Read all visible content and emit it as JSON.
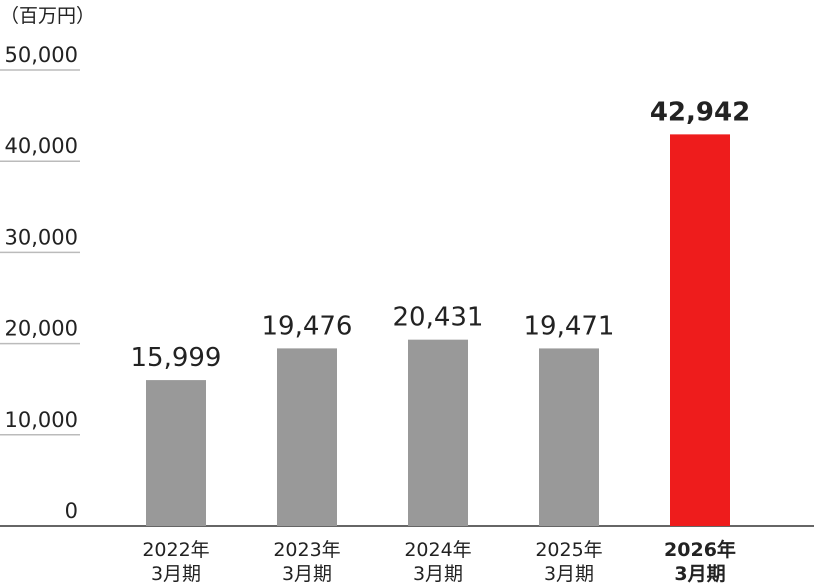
{
  "chart_data": {
    "type": "bar",
    "unit_label": "（百万円）",
    "categories": [
      "2022年\n3月期",
      "2023年\n3月期",
      "2024年\n3月期",
      "2025年\n3月期",
      "2026年\n3月期"
    ],
    "values": [
      15999,
      19476,
      20431,
      19471,
      42942
    ],
    "value_labels": [
      "15,999",
      "19,476",
      "20,431",
      "19,471",
      "42,942"
    ],
    "colors": [
      "#999999",
      "#999999",
      "#999999",
      "#999999",
      "#ee1c1c"
    ],
    "highlight_index": 4,
    "ylim": [
      0,
      50000
    ],
    "yticks": [
      0,
      {
        "value": 10000,
        "label": "10,000"
      },
      {
        "value": 20000,
        "label": "20,000"
      },
      {
        "value": 30000,
        "label": "30,000"
      },
      {
        "value": 40000,
        "label": "40,000"
      },
      {
        "value": 50000,
        "label": "50,000"
      }
    ],
    "grid": true
  }
}
